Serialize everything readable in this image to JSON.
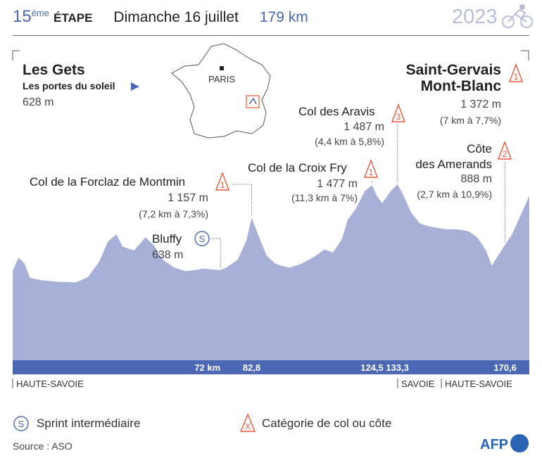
{
  "header": {
    "stage_number": "15",
    "stage_suffix": "ème",
    "stage_word": "ÉTAPE",
    "date": "Dimanche 16 juillet",
    "distance": "179 km",
    "year": "2023"
  },
  "start": {
    "name": "Les Gets",
    "subtitle": "Les portes du soleil",
    "altitude": "628 m"
  },
  "finish": {
    "name_line1": "Saint-Gervais",
    "name_line2": "Mont-Blanc",
    "category": "1",
    "altitude": "1 372 m",
    "detail": "(7 km à 7,7%)"
  },
  "map": {
    "city": "PARIS"
  },
  "climbs": [
    {
      "name": "Col de la Forclaz de Montmin",
      "category": "1",
      "altitude": "1 157 m",
      "detail": "(7,2 km à 7,3%)"
    },
    {
      "name": "Bluffy",
      "category": "S",
      "altitude": "638 m",
      "detail": ""
    },
    {
      "name": "Col de la Croix Fry",
      "category": "1",
      "altitude": "1 477 m",
      "detail": "(11,3 km à 7%)"
    },
    {
      "name": "Col des Aravis",
      "category": "3",
      "altitude": "1 487 m",
      "detail": "(4,4 km à 5,8%)"
    },
    {
      "name_line1": "Côte",
      "name_line2": "des Amerands",
      "category": "2",
      "altitude": "888 m",
      "detail": "(2,7 km à 10,9%)"
    }
  ],
  "km_marks": [
    "72 km",
    "82,8",
    "124,5",
    "133,3",
    "170,6"
  ],
  "departments": {
    "left": "HAUTE-SAVOIE",
    "right_a": "SAVOIE",
    "right_b": "HAUTE-SAVOIE"
  },
  "legend": {
    "sprint_symbol": "S",
    "sprint_label": "Sprint intermédiaire",
    "climb_symbol": "X",
    "climb_label": "Catégorie de col ou côte"
  },
  "source": "Source : ASO",
  "brand": "AFP",
  "colors": {
    "profile": "#a9b0d8",
    "bar": "#4a68b4",
    "accent": "#e8573c",
    "blue_text": "#4a68b4"
  },
  "chart_data": {
    "type": "area",
    "xlabel": "",
    "ylabel": "",
    "x_unit": "km",
    "y_unit": "m",
    "xlim": [
      0,
      179
    ],
    "ylim": [
      300,
      1500
    ],
    "series": [
      {
        "x": [
          0,
          2,
          4,
          6,
          10,
          16,
          22,
          26,
          30,
          33,
          36,
          38,
          42,
          46,
          49,
          52,
          56,
          60,
          64,
          66,
          70,
          72,
          74,
          78,
          81,
          82.8,
          85,
          88,
          91,
          93,
          96,
          100,
          104,
          108,
          111,
          114,
          116,
          119,
          122,
          124.5,
          126,
          128,
          131,
          133.3,
          135,
          138,
          141,
          143,
          146,
          150,
          154,
          158,
          161,
          164,
          166,
          170.6,
          173,
          176,
          179
        ],
        "y": [
          628,
          760,
          705,
          560,
          535,
          520,
          515,
          565,
          720,
          920,
          990,
          870,
          830,
          960,
          880,
          740,
          660,
          625,
          640,
          650,
          640,
          638,
          660,
          740,
          930,
          1157,
          990,
          780,
          700,
          680,
          660,
          700,
          760,
          840,
          810,
          940,
          1130,
          1250,
          1420,
          1477,
          1380,
          1300,
          1420,
          1487,
          1400,
          1210,
          1100,
          1080,
          1060,
          1040,
          1040,
          1020,
          960,
          830,
          680,
          888,
          990,
          1180,
          1372
        ]
      }
    ],
    "markers": [
      {
        "name": "Col de la Forclaz de Montmin",
        "x": 82.8,
        "y": 1157,
        "category": "1"
      },
      {
        "name": "Bluffy",
        "x": 72,
        "y": 638,
        "category": "S"
      },
      {
        "name": "Col de la Croix Fry",
        "x": 124.5,
        "y": 1477,
        "category": "1"
      },
      {
        "name": "Col des Aravis",
        "x": 133.3,
        "y": 1487,
        "category": "3"
      },
      {
        "name": "Côte des Amerands",
        "x": 170.6,
        "y": 888,
        "category": "2"
      },
      {
        "name": "Saint-Gervais Mont-Blanc",
        "x": 179,
        "y": 1372,
        "category": "1"
      }
    ]
  }
}
